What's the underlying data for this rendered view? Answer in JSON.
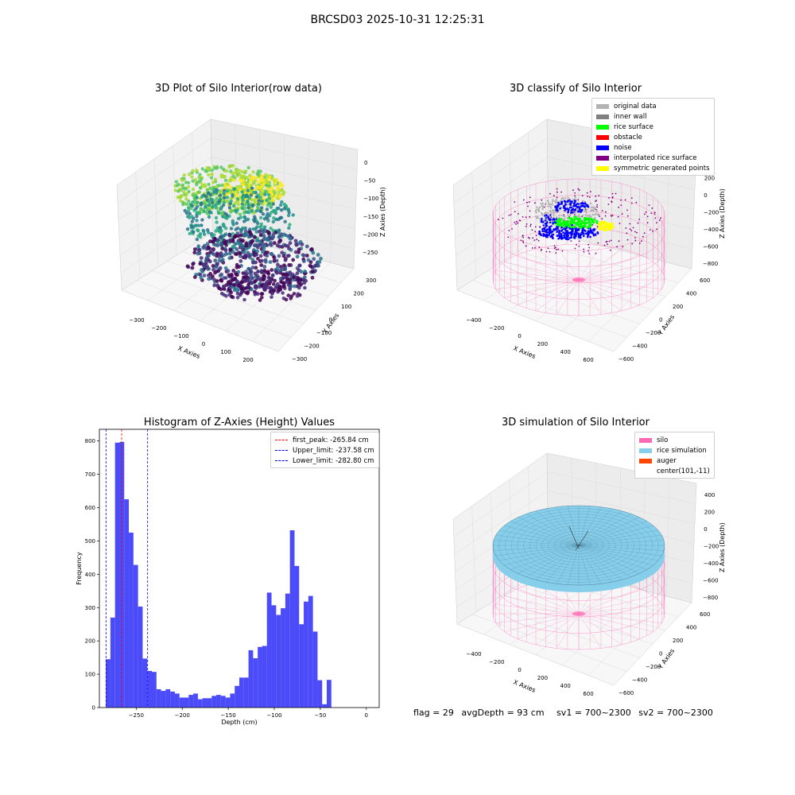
{
  "figure": {
    "suptitle": "BRCSD03 2025-10-31 12:25:31"
  },
  "status_bar": {
    "flag": "flag = 29",
    "avg_depth": "avgDepth = 93 cm",
    "sv1": "sv1 = 700~2300",
    "sv2": "sv2 = 700~2300"
  },
  "chart_data": [
    {
      "type": "scatter",
      "title": "3D Plot of Silo Interior(row data)",
      "xlabel": "X Axies",
      "ylabel": "Y Axies",
      "zlabel": "Z Axies (Depth)",
      "x_ticks": [
        "−300",
        "−200",
        "−100",
        "0",
        "100",
        "200"
      ],
      "y_ticks": [
        "−300",
        "−200",
        "−100",
        "0",
        "100",
        "200",
        "300"
      ],
      "z_ticks": [
        "0",
        "−50",
        "−100",
        "−150",
        "−200",
        "−250"
      ],
      "xlim": [
        -350,
        280
      ],
      "ylim": [
        -320,
        330
      ],
      "zlim": [
        -290,
        10
      ],
      "colormap": "viridis (depth)"
    },
    {
      "type": "scatter",
      "title": "3D classify of Silo Interior",
      "zlabel": "Z Axies (Depth)",
      "xlabel": "X Axies",
      "ylabel": "Y Axies",
      "x_ticks": [
        "−400",
        "−200",
        "0",
        "200",
        "400",
        "600"
      ],
      "y_ticks": [
        "−600",
        "−400",
        "−200",
        "0",
        "200",
        "400",
        "600"
      ],
      "z_ticks": [
        "400",
        "200",
        "0",
        "−200",
        "−400",
        "−600",
        "−800"
      ],
      "legend_position": "top-right",
      "legend": [
        {
          "label": "original data",
          "color": "#b3b3b3"
        },
        {
          "label": "inner wall",
          "color": "#808080"
        },
        {
          "label": "rice surface",
          "color": "#00ff00"
        },
        {
          "label": "obstacle",
          "color": "#ff0000"
        },
        {
          "label": "noise",
          "color": "#0000ff"
        },
        {
          "label": "interpolated rice surface",
          "color": "#800080"
        },
        {
          "label": "symmetric generated points",
          "color": "#ffff00"
        }
      ]
    },
    {
      "type": "bar",
      "title": "Histogram of Z-Axies (Height) Values",
      "xlabel": "Depth (cm)",
      "ylabel": "Frequency",
      "xlim": [
        -290,
        14
      ],
      "ylim": [
        0,
        835
      ],
      "x_ticks": [
        {
          "value": -250,
          "label": "−250"
        },
        {
          "value": -200,
          "label": "−200"
        },
        {
          "value": -150,
          "label": "−150"
        },
        {
          "value": -100,
          "label": "−100"
        },
        {
          "value": -50,
          "label": "−50"
        },
        {
          "value": 0,
          "label": "0"
        }
      ],
      "y_ticks": [
        0,
        100,
        200,
        300,
        400,
        500,
        600,
        700,
        800
      ],
      "bar_color": "#4b4bfa",
      "bin_start": -283,
      "bin_width": 5,
      "values": [
        145,
        270,
        795,
        797,
        625,
        525,
        428,
        303,
        147,
        110,
        107,
        55,
        50,
        55,
        48,
        42,
        30,
        30,
        38,
        42,
        25,
        28,
        28,
        35,
        38,
        35,
        30,
        42,
        65,
        90,
        90,
        172,
        148,
        182,
        185,
        345,
        307,
        278,
        298,
        342,
        532,
        425,
        250,
        318,
        335,
        228,
        82,
        10,
        83
      ],
      "vlines": [
        {
          "label": "first_peak: -265.84 cm",
          "value": -265.84,
          "color": "#ff0000"
        },
        {
          "label": "Upper_limit: -237.58 cm",
          "value": -237.58,
          "color": "#0000ff"
        },
        {
          "label": "Lower_limit: -282.80 cm",
          "value": -282.8,
          "color": "#0000ff"
        }
      ],
      "legend_position": "top-right"
    },
    {
      "type": "surface",
      "title": "3D simulation of Silo Interior",
      "zlabel": "Z Axies (Depth)",
      "xlabel": "X Axies",
      "ylabel": "Y Axies",
      "x_ticks": [
        "−400",
        "−200",
        "0",
        "200",
        "400",
        "600"
      ],
      "y_ticks": [
        "−600",
        "−400",
        "−200",
        "0",
        "200",
        "400",
        "600"
      ],
      "z_ticks": [
        "400",
        "200",
        "0",
        "−200",
        "−400",
        "−600",
        "−800"
      ],
      "legend_position": "top-right",
      "legend": [
        {
          "label": "silo",
          "color": "#ff69b4"
        },
        {
          "label": "rice simulation",
          "color": "#87ceeb"
        },
        {
          "label": "auger",
          "color": "#ff4500"
        },
        {
          "label": "center(101,-11)",
          "color": ""
        }
      ]
    }
  ]
}
